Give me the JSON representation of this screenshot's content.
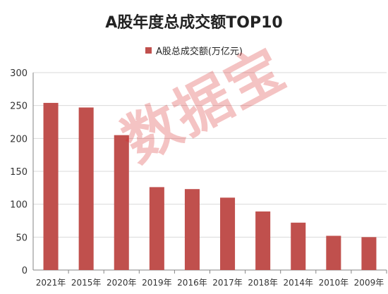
{
  "chart_data": {
    "type": "bar",
    "title": "A股年度总成交额TOP10",
    "categories": [
      "2021年",
      "2015年",
      "2020年",
      "2019年",
      "2016年",
      "2017年",
      "2018年",
      "2014年",
      "2010年",
      "2009年"
    ],
    "series": [
      {
        "name": "A股总成交额(万亿元)",
        "values": [
          254,
          247,
          205,
          126,
          123,
          110,
          89,
          72,
          52,
          50
        ]
      }
    ],
    "ylim": [
      0,
      300
    ],
    "yticks": [
      0,
      50,
      100,
      150,
      200,
      250,
      300
    ],
    "grid": true,
    "legend": "top-center",
    "colors": {
      "bar": "#c0504d",
      "grid": "#d9d9d9",
      "axis": "#868686"
    }
  },
  "watermark": "数据宝"
}
